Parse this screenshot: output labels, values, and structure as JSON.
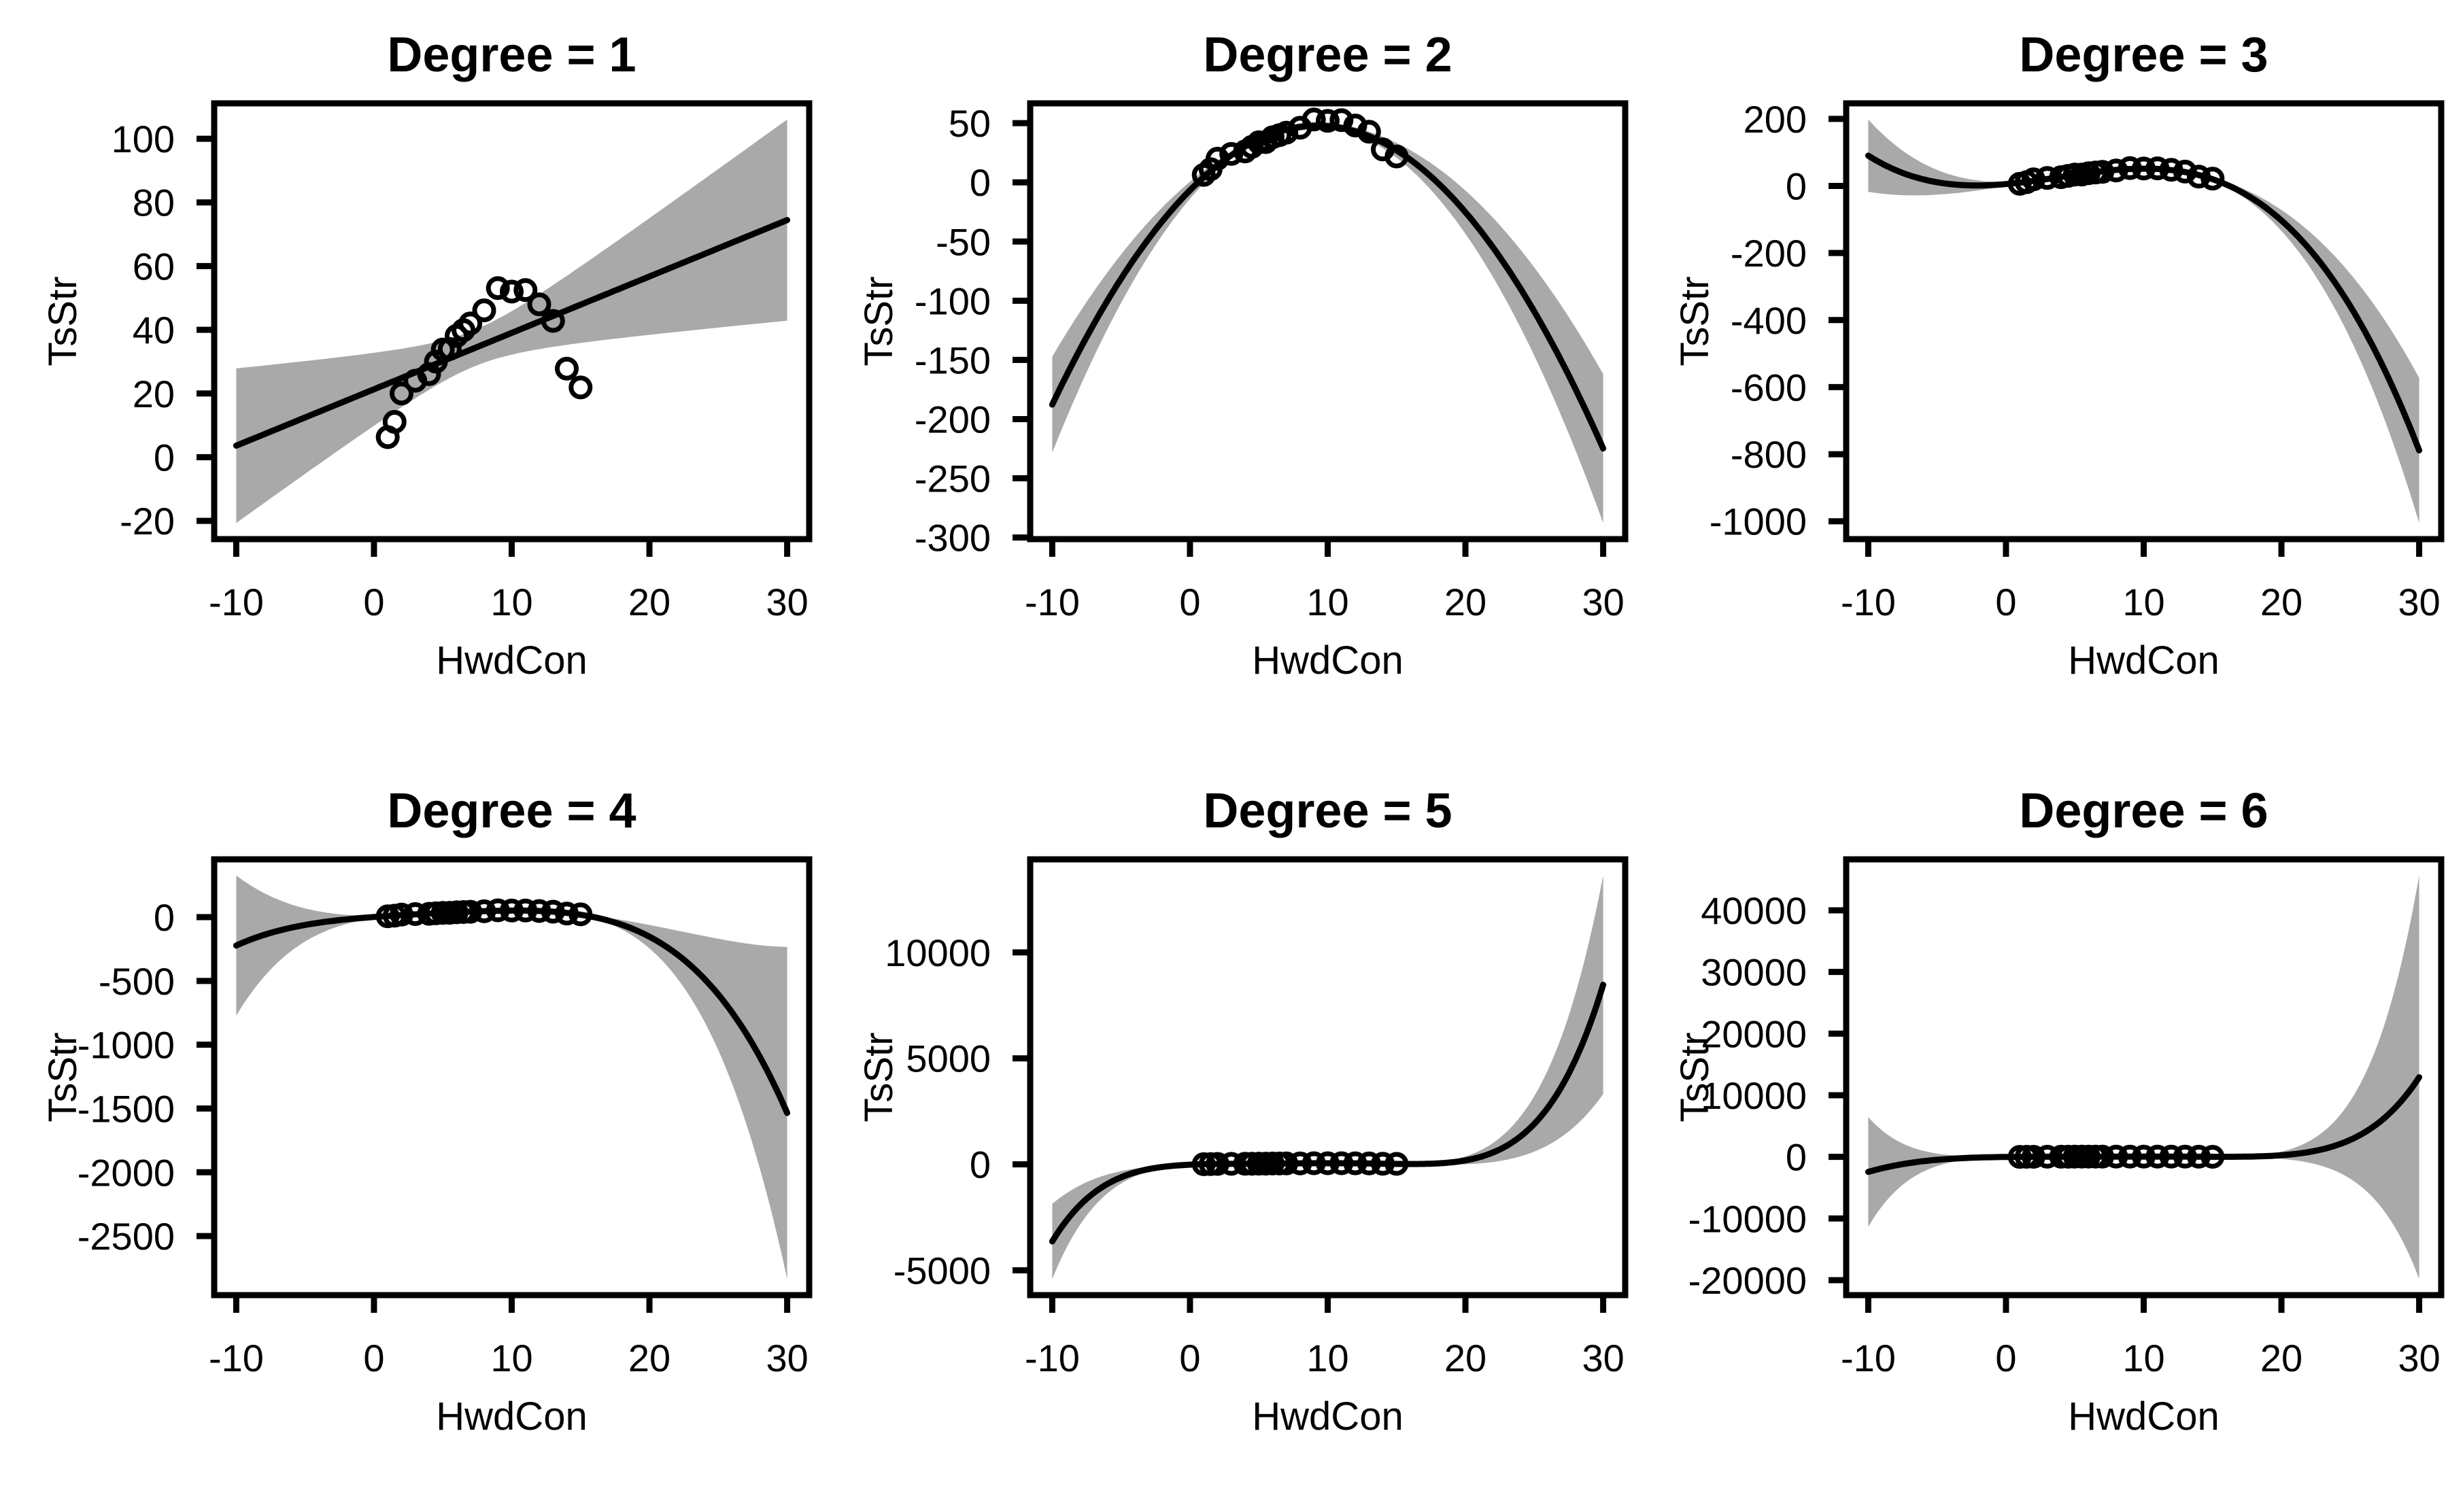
{
  "figure": {
    "background": "#ffffff",
    "text_color": "#000000",
    "band_color": "#a9a9a9",
    "line_color": "#000000",
    "point_color": "#000000"
  },
  "chart_data": {
    "type": "scatter",
    "description": "Polynomial regression fits of TsStr on HwdCon for degrees 1 through 6, each shown with fitted curve and 95% pointwise confidence band",
    "x_label": "HwdCon",
    "y_label": "TsStr",
    "x_ticks": [
      -10,
      0,
      10,
      20,
      30
    ],
    "x_fit_range": [
      -10,
      30
    ],
    "xlim": [
      -11.6,
      31.6
    ],
    "confidence_level": 0.95,
    "grid": "off",
    "legend": "none",
    "points": {
      "HwdCon": [
        1,
        1.5,
        2,
        3,
        4,
        4.5,
        5,
        5.5,
        6,
        6.5,
        7,
        8,
        9,
        10,
        11,
        12,
        13,
        14,
        15
      ],
      "TsStr": [
        6.3,
        11.1,
        20.0,
        24.0,
        26.1,
        30.0,
        33.8,
        34.0,
        38.1,
        39.9,
        42.0,
        46.1,
        53.1,
        52.0,
        52.5,
        48.0,
        42.8,
        27.8,
        21.9
      ]
    },
    "panels": [
      {
        "title": "Degree = 1",
        "degree": 1,
        "y_ticks": [
          100,
          80,
          60,
          40,
          20,
          0,
          -20
        ]
      },
      {
        "title": "Degree = 2",
        "degree": 2,
        "y_ticks": [
          50,
          0,
          -50,
          -100,
          -150,
          -200,
          -250,
          -300
        ]
      },
      {
        "title": "Degree = 3",
        "degree": 3,
        "y_ticks": [
          200,
          0,
          -200,
          -400,
          -600,
          -800,
          -1000
        ]
      },
      {
        "title": "Degree = 4",
        "degree": 4,
        "y_ticks": [
          0,
          -500,
          -1000,
          -1500,
          -2000,
          -2500
        ]
      },
      {
        "title": "Degree = 5",
        "degree": 5,
        "y_ticks": [
          10000,
          5000,
          0,
          -5000
        ]
      },
      {
        "title": "Degree = 6",
        "degree": 6,
        "y_ticks": [
          40000,
          30000,
          20000,
          10000,
          0,
          -10000,
          -20000
        ]
      }
    ]
  }
}
